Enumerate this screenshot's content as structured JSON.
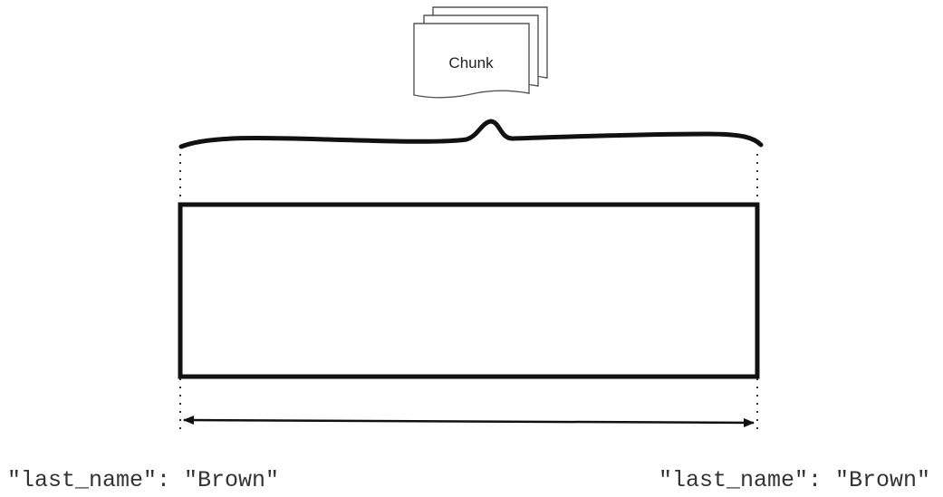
{
  "chunk": {
    "label": "Chunk"
  },
  "range": {
    "start_label": "\"last_name\": \"Brown\"",
    "end_label": "\"last_name\": \"Brown\""
  },
  "colors": {
    "stroke": "#111111",
    "page_fill": "#ffffff",
    "text": "#333333"
  }
}
